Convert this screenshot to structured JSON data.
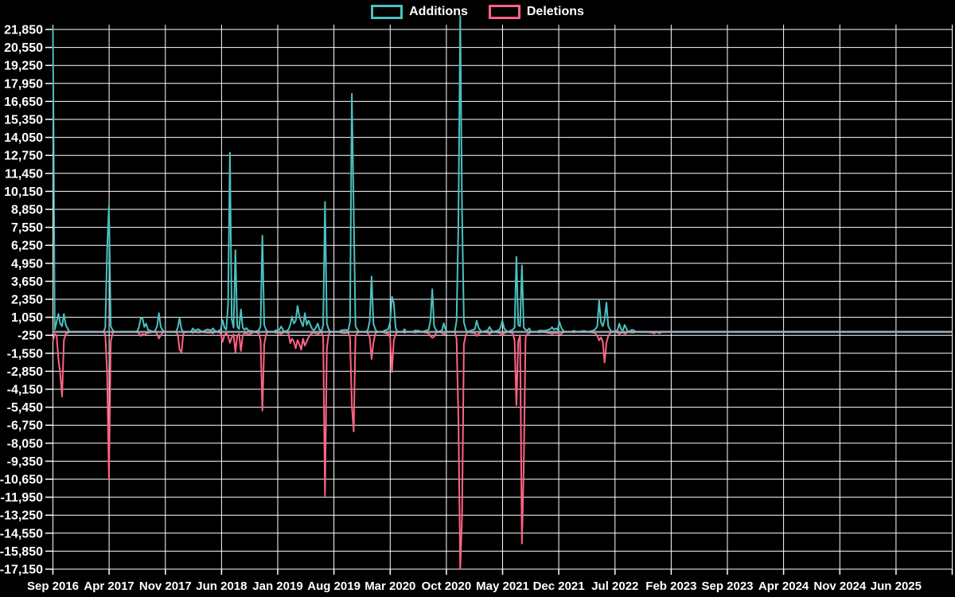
{
  "legend": {
    "position": "top",
    "items": [
      {
        "label": "Additions",
        "color": "#4bc0c0"
      },
      {
        "label": "Deletions",
        "color": "#ff6384"
      }
    ]
  },
  "chart_data": {
    "type": "line",
    "title": "",
    "xlabel": "",
    "ylabel": "",
    "grid": true,
    "legend_position": "top",
    "colors": {
      "background": "#000000",
      "grid": "#ffffff",
      "text": "#ffffff",
      "zero_line": "#9fb0ba",
      "additions": "#4bc0c0",
      "deletions": "#ff6384"
    },
    "x_axis": {
      "tick_labels": [
        "Sep 2016",
        "Apr 2017",
        "Nov 2017",
        "Jun 2018",
        "Jan 2019",
        "Aug 2019",
        "Mar 2020",
        "Oct 2020",
        "May 2021",
        "Dec 2021",
        "Jul 2022",
        "Feb 2023",
        "Sep 2023",
        "Apr 2024",
        "Nov 2024",
        "Jun 2025"
      ],
      "interval_months": 7
    },
    "y_axis": {
      "min": -17150,
      "max": 21850,
      "tick_step": 1300,
      "ticks": [
        21850,
        20550,
        19250,
        17950,
        16650,
        15350,
        14050,
        12750,
        11450,
        10150,
        8850,
        7550,
        6250,
        4950,
        3650,
        2350,
        1050,
        -250,
        -1550,
        -2850,
        -4150,
        -5450,
        -6750,
        -8050,
        -9350,
        -10650,
        -11950,
        -13250,
        -14550,
        -15850,
        -17150
      ]
    },
    "series_names": [
      "Additions",
      "Deletions"
    ],
    "weeks_format": "[x_position_px, additions, deletions]",
    "weeks": [
      [
        66.5,
        21900,
        -690
      ],
      [
        68.8,
        150,
        -150
      ],
      [
        71.1,
        700,
        -250
      ],
      [
        73.4,
        1290,
        -1970
      ],
      [
        75.7,
        600,
        -3000
      ],
      [
        78,
        400,
        -4690
      ],
      [
        80.3,
        1290,
        -600
      ],
      [
        82.6,
        500,
        -150
      ],
      [
        84.9,
        250,
        -80
      ],
      [
        87.2,
        0,
        0
      ],
      [
        130,
        0,
        0
      ],
      [
        132.3,
        300,
        -200
      ],
      [
        134.6,
        5860,
        -2920
      ],
      [
        136.9,
        9080,
        -10620
      ],
      [
        139.2,
        400,
        -700
      ],
      [
        141.5,
        120,
        -100
      ],
      [
        143.8,
        0,
        0
      ],
      [
        172,
        0,
        0
      ],
      [
        174.4,
        300,
        -100
      ],
      [
        176.7,
        950,
        -300
      ],
      [
        179,
        1000,
        -150
      ],
      [
        181.3,
        350,
        -250
      ],
      [
        183.6,
        600,
        -120
      ],
      [
        185.9,
        150,
        -80
      ],
      [
        188.2,
        100,
        -60
      ],
      [
        192.8,
        0,
        0
      ],
      [
        195.1,
        100,
        0
      ],
      [
        197.4,
        400,
        -150
      ],
      [
        199.7,
        1350,
        -480
      ],
      [
        202,
        350,
        -250
      ],
      [
        204.3,
        120,
        -60
      ],
      [
        206.6,
        0,
        0
      ],
      [
        221,
        0,
        0
      ],
      [
        223.4,
        300,
        -200
      ],
      [
        225.7,
        1000,
        -1300
      ],
      [
        228,
        200,
        -1470
      ],
      [
        230.3,
        0,
        -150
      ],
      [
        232.6,
        0,
        0
      ],
      [
        240,
        0,
        0
      ],
      [
        242.3,
        250,
        -80
      ],
      [
        244.6,
        80,
        0
      ],
      [
        249.2,
        200,
        -60
      ],
      [
        253.8,
        0,
        0
      ],
      [
        258.4,
        120,
        -50
      ],
      [
        260.7,
        180,
        -60
      ],
      [
        265.3,
        100,
        -50
      ],
      [
        267.6,
        250,
        -120
      ],
      [
        269.9,
        80,
        0
      ],
      [
        272.2,
        0,
        0
      ],
      [
        277.4,
        150,
        -100
      ],
      [
        279.7,
        850,
        -720
      ],
      [
        282,
        300,
        -250
      ],
      [
        284.3,
        150,
        -100
      ],
      [
        286.6,
        2000,
        -300
      ],
      [
        288.9,
        12950,
        -800
      ],
      [
        291.2,
        900,
        -400
      ],
      [
        293.5,
        300,
        -200
      ],
      [
        295.8,
        5900,
        -1470
      ],
      [
        298.1,
        400,
        -300
      ],
      [
        300.4,
        200,
        -150
      ],
      [
        302.7,
        1620,
        -1390
      ],
      [
        305,
        300,
        -250
      ],
      [
        307.3,
        150,
        -100
      ],
      [
        309.6,
        280,
        -120
      ],
      [
        311.9,
        100,
        -200
      ],
      [
        314.2,
        80,
        -150
      ],
      [
        316.5,
        60,
        -100
      ],
      [
        318.8,
        0,
        0
      ],
      [
        325.1,
        100,
        -100
      ],
      [
        327.4,
        400,
        -600
      ],
      [
        329.7,
        6950,
        -5700
      ],
      [
        332,
        500,
        -900
      ],
      [
        334.3,
        150,
        -200
      ],
      [
        336.6,
        0,
        0
      ],
      [
        344,
        0,
        0
      ],
      [
        346.3,
        100,
        -60
      ],
      [
        350.9,
        150,
        -80
      ],
      [
        353.2,
        380,
        -150
      ],
      [
        355.5,
        150,
        -80
      ],
      [
        357.8,
        0,
        0
      ],
      [
        362.4,
        150,
        -100
      ],
      [
        364.7,
        500,
        -820
      ],
      [
        367,
        1100,
        -500
      ],
      [
        369.3,
        600,
        -700
      ],
      [
        371.6,
        800,
        -1200
      ],
      [
        373.9,
        1870,
        -600
      ],
      [
        376.2,
        1100,
        -900
      ],
      [
        378.5,
        700,
        -1290
      ],
      [
        380.8,
        400,
        -500
      ],
      [
        383.1,
        1350,
        -1000
      ],
      [
        385.4,
        500,
        -700
      ],
      [
        387.7,
        800,
        -400
      ],
      [
        390,
        500,
        -200
      ],
      [
        392.3,
        200,
        -100
      ],
      [
        394.6,
        100,
        -60
      ],
      [
        396.9,
        300,
        -100
      ],
      [
        399.2,
        600,
        -200
      ],
      [
        401.5,
        150,
        -80
      ],
      [
        403.8,
        0,
        0
      ],
      [
        406.1,
        500,
        -400
      ],
      [
        408.4,
        9390,
        -11840
      ],
      [
        410.7,
        600,
        -1200
      ],
      [
        413,
        150,
        -200
      ],
      [
        415.3,
        0,
        0
      ],
      [
        426,
        0,
        0
      ],
      [
        428.3,
        100,
        -60
      ],
      [
        432.9,
        150,
        -100
      ],
      [
        437.5,
        100,
        -60
      ],
      [
        439.8,
        700,
        -400
      ],
      [
        442.1,
        17210,
        -5320
      ],
      [
        444.4,
        8880,
        -7200
      ],
      [
        446.7,
        400,
        -300
      ],
      [
        449,
        150,
        -100
      ],
      [
        451.3,
        0,
        0
      ],
      [
        460,
        0,
        0
      ],
      [
        462.3,
        150,
        -100
      ],
      [
        464.6,
        800,
        -400
      ],
      [
        466.9,
        4000,
        -1970
      ],
      [
        469.2,
        600,
        -800
      ],
      [
        471.5,
        200,
        -150
      ],
      [
        473.8,
        0,
        0
      ],
      [
        481,
        0,
        0
      ],
      [
        483.3,
        100,
        -80
      ],
      [
        487.9,
        200,
        -150
      ],
      [
        490.2,
        700,
        -400
      ],
      [
        492.5,
        2540,
        -2920
      ],
      [
        494.8,
        2100,
        -600
      ],
      [
        497.1,
        300,
        -200
      ],
      [
        499.4,
        0,
        0
      ],
      [
        506,
        0,
        0
      ],
      [
        508.3,
        190,
        -80
      ],
      [
        510.6,
        0,
        0
      ],
      [
        519,
        0,
        0
      ],
      [
        521.3,
        100,
        -60
      ],
      [
        525.9,
        80,
        0
      ],
      [
        530.5,
        0,
        0
      ],
      [
        538.6,
        150,
        -100
      ],
      [
        540.9,
        800,
        -300
      ],
      [
        543.2,
        3080,
        -420
      ],
      [
        545.5,
        400,
        -350
      ],
      [
        547.8,
        150,
        -100
      ],
      [
        550.1,
        0,
        0
      ],
      [
        555.3,
        100,
        -60
      ],
      [
        557.6,
        620,
        -200
      ],
      [
        559.9,
        150,
        -80
      ],
      [
        562.2,
        0,
        0
      ],
      [
        571.4,
        0,
        0
      ],
      [
        573.7,
        800,
        -500
      ],
      [
        576,
        7730,
        -6180
      ],
      [
        578.3,
        22830,
        -17150
      ],
      [
        580.6,
        8600,
        -13270
      ],
      [
        582.9,
        700,
        -900
      ],
      [
        585.2,
        200,
        -250
      ],
      [
        587.5,
        0,
        0
      ],
      [
        592.1,
        100,
        -60
      ],
      [
        596.7,
        200,
        -100
      ],
      [
        599,
        800,
        -300
      ],
      [
        601.3,
        300,
        -150
      ],
      [
        603.6,
        100,
        -60
      ],
      [
        605.9,
        0,
        0
      ],
      [
        612.8,
        100,
        -50
      ],
      [
        615.1,
        350,
        -150
      ],
      [
        617.4,
        120,
        -60
      ],
      [
        619.7,
        0,
        0
      ],
      [
        626.6,
        100,
        -60
      ],
      [
        628.9,
        300,
        -120
      ],
      [
        631.2,
        800,
        -250
      ],
      [
        633.5,
        250,
        -100
      ],
      [
        635.8,
        100,
        -50
      ],
      [
        638.1,
        0,
        0
      ],
      [
        644.3,
        150,
        -100
      ],
      [
        646.6,
        300,
        -640
      ],
      [
        648.9,
        5420,
        -5300
      ],
      [
        651.2,
        500,
        -700
      ],
      [
        653.5,
        400,
        -250
      ],
      [
        655.8,
        4800,
        -15290
      ],
      [
        658.1,
        300,
        -9800
      ],
      [
        660.4,
        150,
        -400
      ],
      [
        662.7,
        100,
        -150
      ],
      [
        665,
        250,
        -100
      ],
      [
        667.3,
        0,
        0
      ],
      [
        675.3,
        0,
        0
      ],
      [
        677.6,
        100,
        -50
      ],
      [
        682.2,
        80,
        0
      ],
      [
        686.8,
        100,
        -60
      ],
      [
        691.4,
        200,
        -100
      ],
      [
        693.7,
        330,
        -150
      ],
      [
        696,
        150,
        -80
      ],
      [
        698.3,
        250,
        -100
      ],
      [
        700.6,
        150,
        -60
      ],
      [
        702.9,
        720,
        -200
      ],
      [
        705.2,
        300,
        -150
      ],
      [
        707.5,
        100,
        -50
      ],
      [
        709.8,
        0,
        0
      ],
      [
        718.3,
        0,
        0
      ],
      [
        720.6,
        80,
        -40
      ],
      [
        725.2,
        0,
        0
      ],
      [
        734.4,
        60,
        0
      ],
      [
        739,
        0,
        0
      ],
      [
        745.9,
        100,
        -60
      ],
      [
        748.2,
        200,
        -100
      ],
      [
        750.5,
        400,
        -300
      ],
      [
        752.8,
        2255,
        -620
      ],
      [
        755.1,
        700,
        -400
      ],
      [
        757.4,
        400,
        -700
      ],
      [
        759.7,
        900,
        -2215
      ],
      [
        762,
        2115,
        -800
      ],
      [
        764.3,
        400,
        -300
      ],
      [
        766.6,
        150,
        -100
      ],
      [
        768.9,
        0,
        0
      ],
      [
        775.8,
        100,
        -50
      ],
      [
        778.1,
        590,
        -150
      ],
      [
        780.4,
        200,
        -80
      ],
      [
        782.7,
        100,
        -50
      ],
      [
        785,
        500,
        -150
      ],
      [
        787.3,
        200,
        -80
      ],
      [
        789.6,
        0,
        0
      ],
      [
        794.2,
        150,
        -60
      ],
      [
        796.5,
        100,
        -50
      ],
      [
        798.8,
        0,
        0
      ],
      [
        810,
        0,
        0
      ],
      [
        819.9,
        0,
        -60
      ],
      [
        822.2,
        0,
        -120
      ],
      [
        824.5,
        0,
        0
      ],
      [
        829.1,
        0,
        -100
      ],
      [
        831.4,
        0,
        0
      ],
      [
        1196.5,
        0,
        0
      ]
    ]
  }
}
